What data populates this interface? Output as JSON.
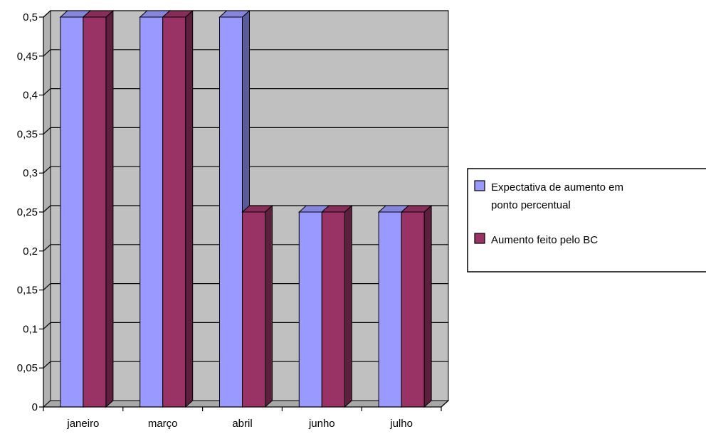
{
  "chart_data": {
    "type": "bar",
    "categories": [
      "janeiro",
      "março",
      "abril",
      "junho",
      "julho"
    ],
    "series": [
      {
        "name": "Expectativa de aumento em ponto percentual",
        "values": [
          0.5,
          0.5,
          0.5,
          0.25,
          0.25
        ],
        "color": "#9999ff",
        "side_color": "#5c5c99",
        "top_color": "#8686dd"
      },
      {
        "name": "Aumento feito pelo BC",
        "values": [
          0.5,
          0.5,
          0.25,
          0.25,
          0.25
        ],
        "color": "#993366",
        "side_color": "#5c1f3d",
        "top_color": "#862d59"
      }
    ],
    "legend_lines": [
      [
        "Expectativa de aumento em",
        "ponto percentual"
      ],
      [
        "Aumento feito pelo BC"
      ]
    ],
    "y_ticks": [
      "0",
      "0,05",
      "0,1",
      "0,15",
      "0,2",
      "0,25",
      "0,3",
      "0,35",
      "0,4",
      "0,45",
      "0,5"
    ],
    "ylim": [
      0,
      0.5
    ],
    "grid": true,
    "chart_style": "3d-clustered-column",
    "plot_background": "#c0c0c0",
    "legend_position": "right",
    "title": "",
    "xlabel": "",
    "ylabel": ""
  }
}
